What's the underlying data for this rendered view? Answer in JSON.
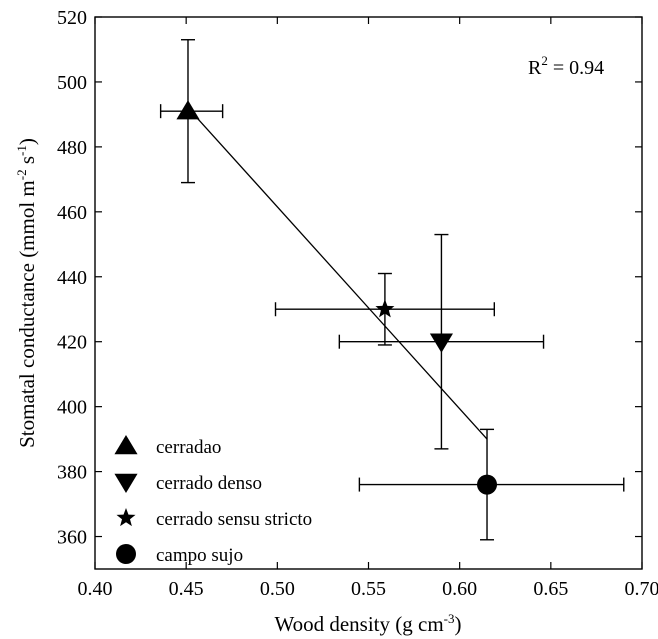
{
  "chart_data": {
    "type": "scatter",
    "xlabel": "Wood density (g cm",
    "xlabel_sup": "-3",
    "xlabel_end": ")",
    "ylabel": "Stomatal conductance (mmol m",
    "ylabel_sup1": "-2",
    "ylabel_mid": " s",
    "ylabel_sup2": "-1",
    "ylabel_end": ")",
    "xlim": [
      0.4,
      0.7
    ],
    "ylim": [
      350,
      520
    ],
    "xticks": [
      "0.40",
      "0.45",
      "0.50",
      "0.55",
      "0.60",
      "0.65",
      "0.70"
    ],
    "yticks": [
      "360",
      "380",
      "400",
      "420",
      "440",
      "460",
      "480",
      "500",
      "520"
    ],
    "grid": false,
    "legend_position": "bottom-left",
    "annotation": {
      "prefix": "R",
      "sup": "2",
      "suffix": " = 0.94"
    },
    "series": [
      {
        "name": "cerradao",
        "marker": "triangle-up",
        "x": 0.451,
        "y": 491,
        "xerr": [
          0.436,
          0.47
        ],
        "yerr": [
          469,
          513
        ]
      },
      {
        "name": "cerrado denso",
        "marker": "triangle-down",
        "x": 0.59,
        "y": 420,
        "xerr": [
          0.534,
          0.646
        ],
        "yerr": [
          387,
          453
        ]
      },
      {
        "name": "cerrado sensu stricto",
        "marker": "star",
        "x": 0.559,
        "y": 430,
        "xerr": [
          0.499,
          0.619
        ],
        "yerr": [
          419,
          441
        ]
      },
      {
        "name": "campo sujo",
        "marker": "circle",
        "x": 0.615,
        "y": 376,
        "xerr": [
          0.545,
          0.69
        ],
        "yerr": [
          359,
          393
        ]
      }
    ],
    "fit_line": {
      "x": [
        0.451,
        0.615
      ],
      "y": [
        492,
        390
      ]
    }
  }
}
